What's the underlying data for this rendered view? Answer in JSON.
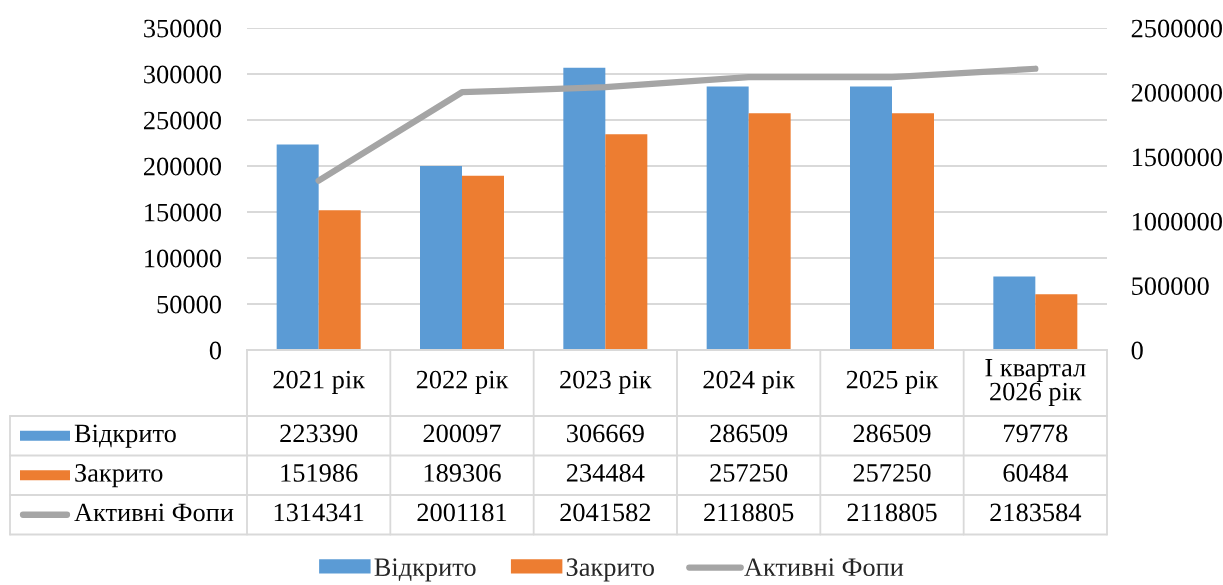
{
  "chart_data": {
    "type": "bar",
    "categories": [
      "2021 рік",
      "2022 рік",
      "2023 рік",
      "2024 рік",
      "2025 рік",
      "I квартал\n2026 рік"
    ],
    "series": [
      {
        "name": "Відкрито",
        "color": "#5b9bd5",
        "values": [
          223390,
          200097,
          306669,
          286509,
          286509,
          79778
        ]
      },
      {
        "name": "Закрито",
        "color": "#ed7d31",
        "values": [
          151986,
          189306,
          234484,
          257250,
          257250,
          60484
        ]
      },
      {
        "name": "Активні Фопи",
        "type": "line",
        "axis": "y2",
        "color": "#a5a5a5",
        "values": [
          1314341,
          2001181,
          2041582,
          2118805,
          2118805,
          2183584
        ]
      }
    ],
    "ylim": [
      0,
      350000
    ],
    "yticks": [
      0,
      50000,
      100000,
      150000,
      200000,
      250000,
      300000,
      350000
    ],
    "y2lim": [
      0,
      2500000
    ],
    "y2ticks": [
      0,
      500000,
      1000000,
      1500000,
      2000000,
      2500000
    ],
    "grid": "y",
    "legend": "bottom",
    "data_labels": true
  }
}
